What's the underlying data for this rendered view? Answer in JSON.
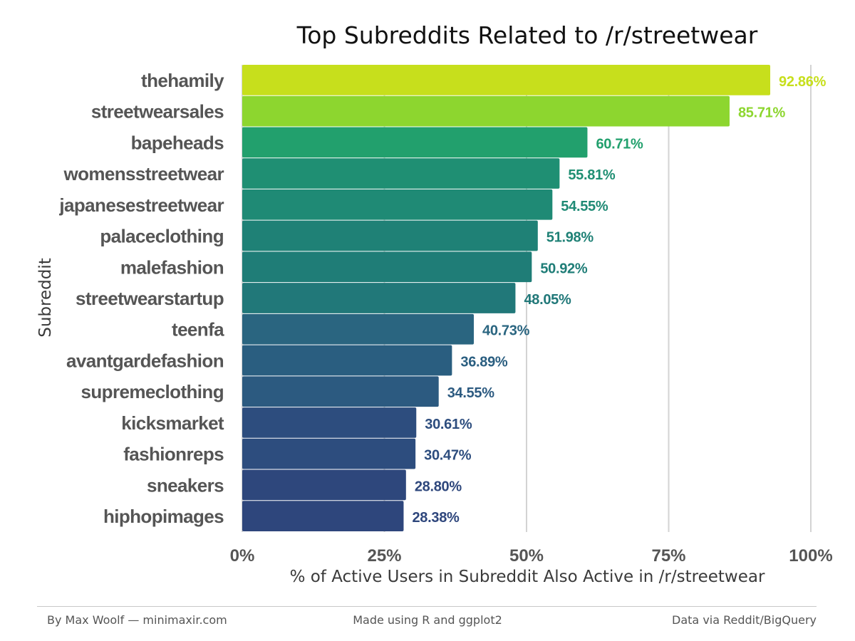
{
  "chart_data": {
    "type": "bar",
    "orientation": "horizontal",
    "title": "Top Subreddits Related to /r/streetwear",
    "xlabel": "% of Active Users in Subreddit Also Active in /r/streetwear",
    "ylabel": "Subreddit",
    "xlim": [
      0,
      100
    ],
    "x_ticks": [
      0,
      25,
      50,
      75,
      100
    ],
    "x_tick_labels": [
      "0%",
      "25%",
      "50%",
      "75%",
      "100%"
    ],
    "grid": "vertical",
    "legend": "none",
    "categories": [
      "thehamily",
      "streetwearsales",
      "bapeheads",
      "womensstreetwear",
      "japanesestreetwear",
      "palaceclothing",
      "malefashion",
      "streetwearstartup",
      "teenfa",
      "avantgardefashion",
      "supremeclothing",
      "kicksmarket",
      "fashionreps",
      "sneakers",
      "hiphopimages"
    ],
    "values": [
      92.86,
      85.71,
      60.71,
      55.81,
      54.55,
      51.98,
      50.92,
      48.05,
      40.73,
      36.89,
      34.55,
      30.61,
      30.47,
      28.8,
      28.38
    ],
    "value_labels": [
      "92.86%",
      "85.71%",
      "60.71%",
      "55.81%",
      "54.55%",
      "51.98%",
      "50.92%",
      "48.05%",
      "40.73%",
      "36.89%",
      "34.55%",
      "30.61%",
      "30.47%",
      "28.80%",
      "28.38%"
    ],
    "bar_colors": [
      "#c7df1c",
      "#8dd62f",
      "#22a06d",
      "#1f8f73",
      "#1f8a75",
      "#1f8176",
      "#1f7d77",
      "#217879",
      "#2a6580",
      "#2a5e80",
      "#2c5a80",
      "#2d4d7e",
      "#2d4d7e",
      "#2e477c",
      "#2e467c"
    ],
    "gridline_color": "#d3d3d3",
    "category_label_color": "#555555",
    "tick_label_color": "#555555"
  },
  "footer": {
    "left": "By Max Woolf — minimaxir.com",
    "center": "Made using R and ggplot2",
    "right": "Data via Reddit/BigQuery"
  }
}
